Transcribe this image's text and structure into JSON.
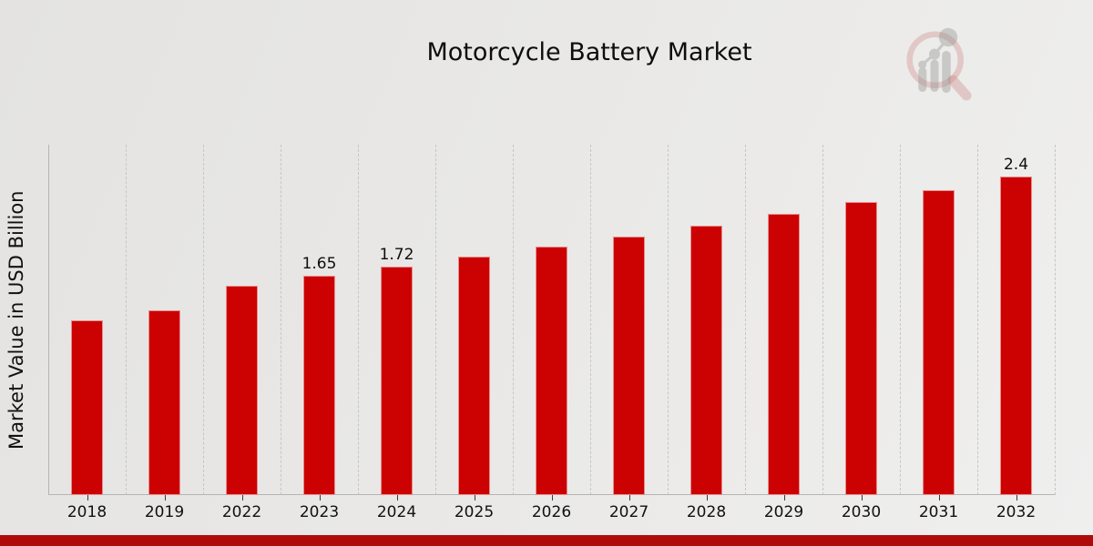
{
  "chart_data": {
    "type": "bar",
    "title": "Motorcycle Battery Market",
    "xlabel": "",
    "ylabel": "Market Value in USD Billion",
    "categories": [
      "2018",
      "2019",
      "2022",
      "2023",
      "2024",
      "2025",
      "2026",
      "2027",
      "2028",
      "2029",
      "2030",
      "2031",
      "2032"
    ],
    "values": [
      1.32,
      1.39,
      1.58,
      1.65,
      1.72,
      1.8,
      1.87,
      1.95,
      2.03,
      2.12,
      2.21,
      2.3,
      2.4
    ],
    "value_labels": [
      "",
      "",
      "",
      "1.65",
      "1.72",
      "",
      "",
      "",
      "",
      "",
      "",
      "",
      "2.4"
    ],
    "ylim": [
      0,
      2.64
    ],
    "grid": "vertical-dashed",
    "legend": "none",
    "bar_color": "#cc0101",
    "grid_color": "#c6c6c6",
    "axis_color": "#b5b5b5",
    "text_color": "#111111"
  },
  "footer": {
    "accent_color": "#b00b0b"
  },
  "logo": {
    "name": "magnifier-bar-chart-logo",
    "ring_color": "#c97c78",
    "glyph_color": "#979795"
  }
}
